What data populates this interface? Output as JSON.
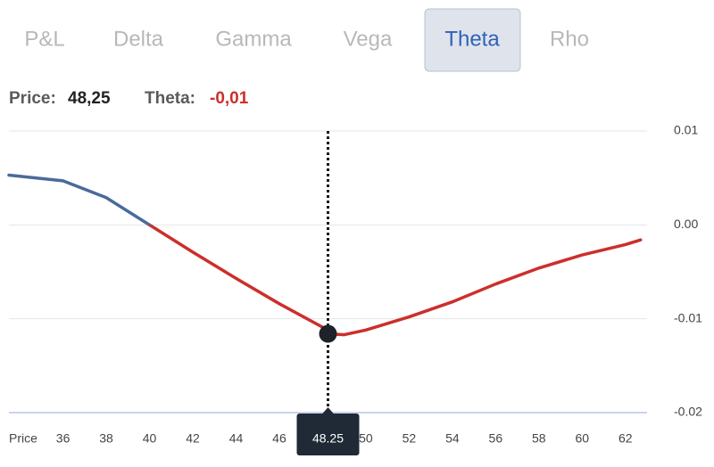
{
  "tabs": [
    "P&L",
    "Delta",
    "Gamma",
    "Vega",
    "Theta",
    "Rho"
  ],
  "active_tab": 4,
  "readout": {
    "price_label": "Price:",
    "price": "48,25",
    "greek_label": "Theta:",
    "greek": "-0,01"
  },
  "chart_data": {
    "type": "line",
    "xlabel": "Price",
    "x": [
      33.5,
      36,
      38,
      40,
      42,
      44,
      46,
      48,
      48.25,
      49,
      50,
      52,
      54,
      56,
      58,
      60,
      62,
      62.7
    ],
    "series": [
      {
        "values": [
          0.0053,
          0.0047,
          0.0029,
          0,
          -0.0029,
          -0.0057,
          -0.0084,
          -0.0109,
          -0.0116,
          -0.0117,
          -0.0112,
          -0.0098,
          -0.0082,
          -0.0063,
          -0.0046,
          -0.0032,
          -0.0021,
          -0.0016
        ]
      }
    ],
    "colors": {
      "positive": "#4a6a9c",
      "negative": "#cc2f2b"
    },
    "xlim": [
      33.5,
      63
    ],
    "ylim": [
      -0.02,
      0.01
    ],
    "xticks": [
      36,
      38,
      40,
      42,
      44,
      46,
      50,
      52,
      54,
      56,
      58,
      60,
      62
    ],
    "yticks": [
      0.01,
      {
        "value": 0,
        "label": "0.00"
      },
      -0.01,
      -0.02
    ],
    "marker": {
      "x": 48.25,
      "y": -0.0116
    },
    "grid": true
  }
}
